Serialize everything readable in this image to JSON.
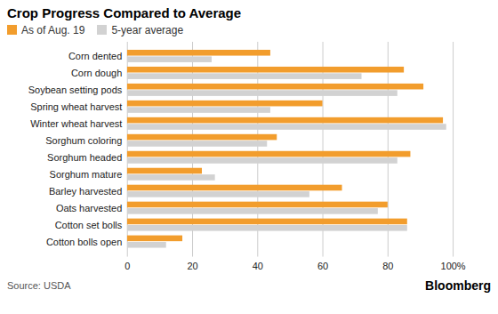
{
  "chart_data": {
    "type": "bar",
    "orientation": "horizontal",
    "title": "Crop Progress Compared to Average",
    "source": "Source: USDA",
    "credit": "Bloomberg",
    "categories": [
      "Corn dented",
      "Corn dough",
      "Soybean setting pods",
      "Spring wheat harvest",
      "Winter wheat harvest",
      "Sorghum coloring",
      "Sorghum headed",
      "Sorghum mature",
      "Barley harvested",
      "Oats harvested",
      "Cotton set bolls",
      "Cotton bolls open"
    ],
    "series": [
      {
        "name": "As of Aug. 19",
        "color": "#f29d2d",
        "values": [
          44,
          85,
          91,
          60,
          97,
          46,
          87,
          23,
          66,
          80,
          86,
          17
        ]
      },
      {
        "name": "5-year average",
        "color": "#d2d2d2",
        "values": [
          26,
          72,
          83,
          44,
          98,
          43,
          83,
          27,
          56,
          77,
          86,
          12
        ]
      }
    ],
    "xlim": [
      0,
      100
    ],
    "xticks": [
      0,
      20,
      40,
      60,
      80,
      {
        "value": 100,
        "label": "100%"
      }
    ],
    "grid": true,
    "legend": "top"
  }
}
